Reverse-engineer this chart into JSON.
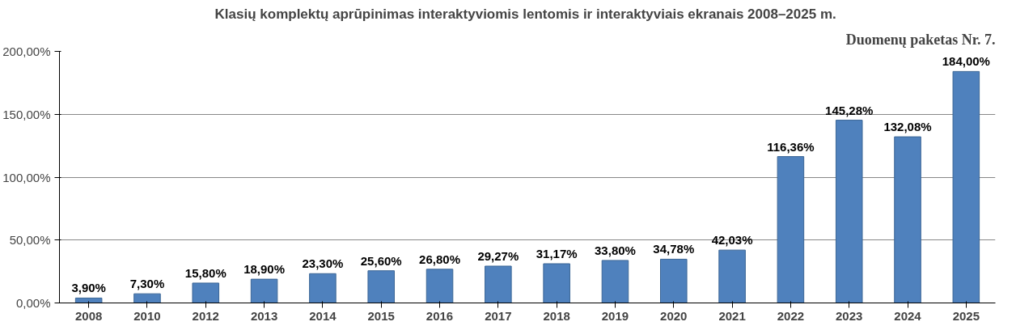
{
  "chart_data": {
    "type": "bar",
    "title": "Klasių komplektų aprūpinimas  interaktyviomis lentomis ir interaktyviais ekranais 2008–2025 m.",
    "annotations": [
      "Duomenų paketas Nr. 7."
    ],
    "categories": [
      "2008",
      "2010",
      "2012",
      "2013",
      "2014",
      "2015",
      "2016",
      "2017",
      "2018",
      "2019",
      "2020",
      "2021",
      "2022",
      "2023",
      "2024",
      "2025"
    ],
    "values": [
      3.9,
      7.3,
      15.8,
      18.9,
      23.3,
      25.6,
      26.8,
      29.27,
      31.17,
      33.8,
      34.78,
      42.03,
      116.36,
      145.28,
      132.08,
      184.0
    ],
    "value_labels": [
      "3,90%",
      "7,30%",
      "15,80%",
      "18,90%",
      "23,30%",
      "25,60%",
      "26,80%",
      "29,27%",
      "31,17%",
      "33,80%",
      "34,78%",
      "42,03%",
      "116,36%",
      "145,28%",
      "132,08%",
      "184,00%"
    ],
    "color": "#4f81bd",
    "ylim": [
      0,
      200
    ],
    "yticks": [
      {
        "value": 0,
        "label": "0,00%"
      },
      {
        "value": 50,
        "label": "50,00%"
      },
      {
        "value": 100,
        "label": "100,00%"
      },
      {
        "value": 150,
        "label": "150,00%"
      },
      {
        "value": 200,
        "label": "200,00%"
      }
    ],
    "grid": "y"
  }
}
